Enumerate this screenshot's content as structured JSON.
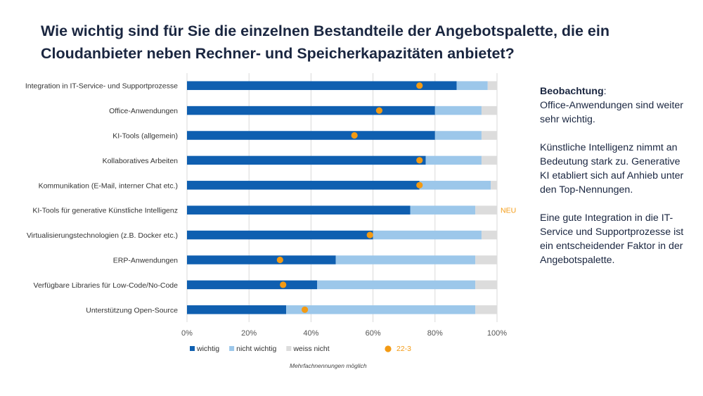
{
  "title": "Wie wichtig sind für Sie die einzelnen Bestandteile der Angebotspalette, die ein Cloudanbieter neben Rechner- und Speicherkapazitäten anbietet?",
  "notes": {
    "heading": "Beobachtung",
    "heading_suffix": ":",
    "p1": "Office-Anwendungen sind weiter sehr wichtig.",
    "p2": "Künstliche Intelligenz nimmt an Bedeutung stark zu. Generative KI etabliert sich auf Anhieb unter den Top-Nennungen.",
    "p3": "Eine gute Integration in die IT-Service und Supportprozesse ist ein entscheidender Faktor in der Angebotspalette."
  },
  "footnote": "Mehrfachnennungen möglich",
  "colors": {
    "wichtig": "#0f5fb0",
    "nicht_wichtig": "#9cc7ea",
    "weiss_nicht": "#dcdcdc",
    "marker": "#f39a13",
    "new_label": "#f39a13"
  },
  "chart_data": {
    "type": "bar",
    "orientation": "horizontal",
    "stacked": true,
    "categories": [
      "Integration in IT-Service- und Supportprozesse",
      "Office-Anwendungen",
      "KI-Tools (allgemein)",
      "Kollaboratives Arbeiten",
      "Kommunikation (E-Mail, interner Chat etc.)",
      "KI-Tools für generative Künstliche Intelligenz",
      "Virtualisierungstechnologien (z.B. Docker etc.)",
      "ERP-Anwendungen",
      "Verfügbare Libraries für Low-Code/No-Code",
      "Unterstützung Open-Source"
    ],
    "series": [
      {
        "name": "wichtig",
        "values": [
          87,
          80,
          80,
          77,
          75,
          72,
          60,
          48,
          42,
          32
        ]
      },
      {
        "name": "nicht wichtig",
        "values": [
          10,
          15,
          15,
          18,
          23,
          21,
          35,
          45,
          51,
          61
        ]
      },
      {
        "name": "weiss nicht",
        "values": [
          3,
          5,
          5,
          5,
          2,
          7,
          5,
          7,
          7,
          7
        ]
      }
    ],
    "markers": {
      "name": "22-3",
      "values": [
        75,
        62,
        54,
        75,
        75,
        null,
        59,
        30,
        31,
        38
      ]
    },
    "annotations": [
      {
        "category_index": 5,
        "text": "NEU"
      }
    ],
    "xlim": [
      0,
      100
    ],
    "xticks": [
      "0%",
      "20%",
      "40%",
      "60%",
      "80%",
      "100%"
    ],
    "grid": true,
    "legend": "bottom"
  }
}
